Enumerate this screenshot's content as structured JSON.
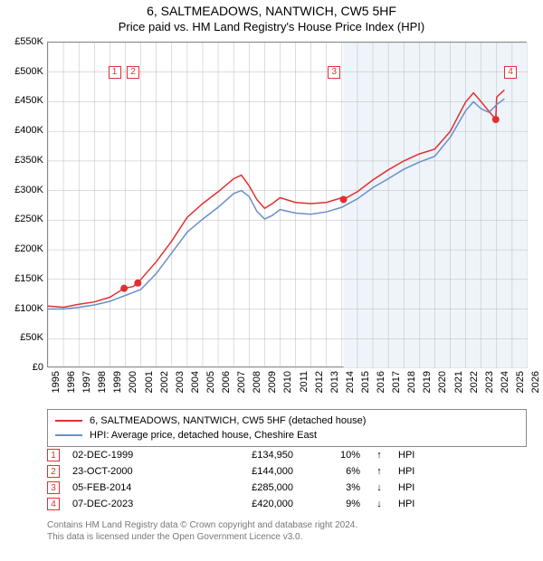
{
  "title": "6, SALTMEADOWS, NANTWICH, CW5 5HF",
  "subtitle": "Price paid vs. HM Land Registry's House Price Index (HPI)",
  "chart": {
    "type": "line",
    "background_color": "#ffffff",
    "shaded_band": {
      "x_from": 2014.1,
      "x_to": 2026,
      "color": "#eef4fa"
    },
    "grid_color": "#bbbbbb",
    "axis_color": "#888888",
    "xlim": [
      1995,
      2026
    ],
    "ylim": [
      0,
      550000
    ],
    "ytick_step": 50000,
    "yticks": [
      "£0",
      "£50K",
      "£100K",
      "£150K",
      "£200K",
      "£250K",
      "£300K",
      "£350K",
      "£400K",
      "£450K",
      "£500K",
      "£550K"
    ],
    "xticks": [
      1995,
      1996,
      1997,
      1998,
      1999,
      2000,
      2001,
      2002,
      2003,
      2004,
      2005,
      2006,
      2007,
      2008,
      2009,
      2010,
      2011,
      2012,
      2013,
      2014,
      2015,
      2016,
      2017,
      2018,
      2019,
      2020,
      2021,
      2022,
      2023,
      2024,
      2025,
      2026
    ],
    "series": [
      {
        "name": "price_paid",
        "label": "6, SALTMEADOWS, NANTWICH, CW5 5HF (detached house)",
        "color": "#e03030",
        "line_width": 1.5,
        "points": [
          [
            1995,
            105000
          ],
          [
            1996,
            103000
          ],
          [
            1997,
            108000
          ],
          [
            1998,
            112000
          ],
          [
            1999,
            120000
          ],
          [
            1999.92,
            134950
          ],
          [
            2000.5,
            138000
          ],
          [
            2000.81,
            144000
          ],
          [
            2001,
            150000
          ],
          [
            2002,
            180000
          ],
          [
            2003,
            215000
          ],
          [
            2004,
            255000
          ],
          [
            2005,
            278000
          ],
          [
            2006,
            298000
          ],
          [
            2007,
            320000
          ],
          [
            2007.5,
            326000
          ],
          [
            2008,
            308000
          ],
          [
            2008.5,
            285000
          ],
          [
            2009,
            270000
          ],
          [
            2009.5,
            278000
          ],
          [
            2010,
            288000
          ],
          [
            2011,
            280000
          ],
          [
            2012,
            278000
          ],
          [
            2013,
            280000
          ],
          [
            2014,
            288000
          ],
          [
            2014.1,
            285000
          ],
          [
            2015,
            298000
          ],
          [
            2016,
            318000
          ],
          [
            2017,
            335000
          ],
          [
            2018,
            350000
          ],
          [
            2019,
            362000
          ],
          [
            2020,
            370000
          ],
          [
            2021,
            400000
          ],
          [
            2022,
            450000
          ],
          [
            2022.5,
            465000
          ],
          [
            2023,
            450000
          ],
          [
            2023.94,
            420000
          ],
          [
            2024,
            458000
          ],
          [
            2024.5,
            470000
          ]
        ],
        "sale_dots": [
          {
            "x": 1999.92,
            "y": 134950
          },
          {
            "x": 2000.81,
            "y": 144000
          },
          {
            "x": 2014.1,
            "y": 285000
          },
          {
            "x": 2023.94,
            "y": 420000
          }
        ],
        "dot_radius": 4,
        "dot_color": "#e03030"
      },
      {
        "name": "hpi",
        "label": "HPI: Average price, detached house, Cheshire East",
        "color": "#6a8fc8",
        "line_width": 1.5,
        "points": [
          [
            1995,
            100000
          ],
          [
            1996,
            100000
          ],
          [
            1997,
            103000
          ],
          [
            1998,
            107000
          ],
          [
            1999,
            113000
          ],
          [
            2000,
            123000
          ],
          [
            2001,
            133000
          ],
          [
            2002,
            160000
          ],
          [
            2003,
            195000
          ],
          [
            2004,
            230000
          ],
          [
            2005,
            252000
          ],
          [
            2006,
            272000
          ],
          [
            2007,
            295000
          ],
          [
            2007.5,
            300000
          ],
          [
            2008,
            290000
          ],
          [
            2008.5,
            265000
          ],
          [
            2009,
            252000
          ],
          [
            2009.5,
            258000
          ],
          [
            2010,
            268000
          ],
          [
            2011,
            262000
          ],
          [
            2012,
            260000
          ],
          [
            2013,
            264000
          ],
          [
            2014,
            272000
          ],
          [
            2015,
            286000
          ],
          [
            2016,
            305000
          ],
          [
            2017,
            320000
          ],
          [
            2018,
            336000
          ],
          [
            2019,
            348000
          ],
          [
            2020,
            358000
          ],
          [
            2021,
            390000
          ],
          [
            2022,
            435000
          ],
          [
            2022.5,
            450000
          ],
          [
            2023,
            438000
          ],
          [
            2023.5,
            432000
          ],
          [
            2024,
            445000
          ],
          [
            2024.5,
            455000
          ]
        ]
      }
    ],
    "overlay_markers": [
      {
        "n": "1",
        "x": 1999.3,
        "y": 500000
      },
      {
        "n": "2",
        "x": 2000.5,
        "y": 500000
      },
      {
        "n": "3",
        "x": 2013.5,
        "y": 500000
      },
      {
        "n": "4",
        "x": 2024.9,
        "y": 500000
      }
    ]
  },
  "legend": {
    "items": [
      {
        "color": "#e03030",
        "label": "6, SALTMEADOWS, NANTWICH, CW5 5HF (detached house)"
      },
      {
        "color": "#6a8fc8",
        "label": "HPI: Average price, detached house, Cheshire East"
      }
    ]
  },
  "sales_table": [
    {
      "n": "1",
      "date": "02-DEC-1999",
      "price": "£134,950",
      "pct": "10%",
      "arrow": "↑",
      "suffix": "HPI"
    },
    {
      "n": "2",
      "date": "23-OCT-2000",
      "price": "£144,000",
      "pct": "6%",
      "arrow": "↑",
      "suffix": "HPI"
    },
    {
      "n": "3",
      "date": "05-FEB-2014",
      "price": "£285,000",
      "pct": "3%",
      "arrow": "↓",
      "suffix": "HPI"
    },
    {
      "n": "4",
      "date": "07-DEC-2023",
      "price": "£420,000",
      "pct": "9%",
      "arrow": "↓",
      "suffix": "HPI"
    }
  ],
  "attribution": {
    "line1": "Contains HM Land Registry data © Crown copyright and database right 2024.",
    "line2": "This data is licensed under the Open Government Licence v3.0."
  }
}
